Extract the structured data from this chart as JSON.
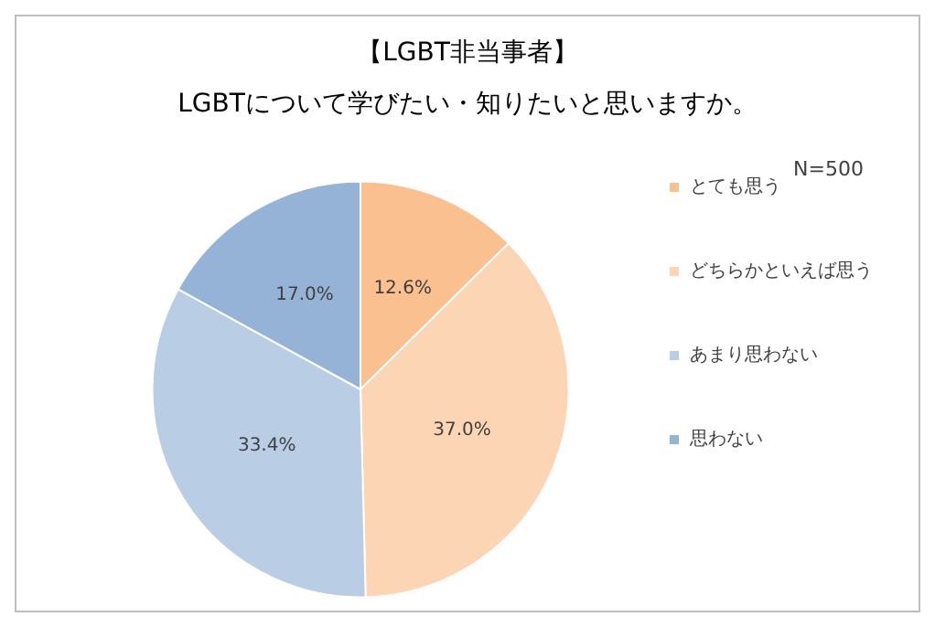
{
  "chart_data": {
    "type": "pie",
    "title": "【LGBT非当事者】",
    "subtitle": "LGBTについて学びたい・知りたいと思いますか。",
    "annotations": [
      "N=500"
    ],
    "categories": [
      "とても思う",
      "どちらかといえば思う",
      "あまり思わない",
      "思わない"
    ],
    "values": [
      12.6,
      37.0,
      33.4,
      17.0
    ],
    "colors": [
      "#fac090",
      "#fcd5b5",
      "#b9cde5",
      "#95b3d7"
    ],
    "value_labels": [
      "12.6%",
      "37.0%",
      "33.4%",
      "17.0%"
    ],
    "legend": "right"
  }
}
